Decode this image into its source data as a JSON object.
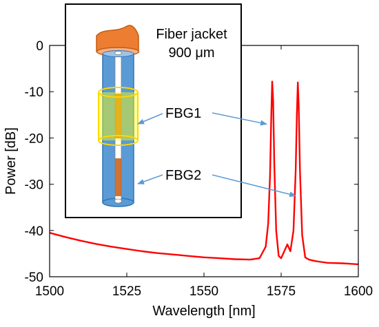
{
  "chart_data": {
    "type": "line",
    "xlabel": "Wavelength [nm]",
    "ylabel": "Power [dB]",
    "xlim": [
      1500,
      1600
    ],
    "ylim": [
      -50,
      0
    ],
    "x_ticks": [
      1500,
      1525,
      1550,
      1575,
      1600
    ],
    "y_ticks": [
      0,
      -10,
      -20,
      -30,
      -40,
      -50
    ],
    "grid": false,
    "series": [
      {
        "color": "#ff0000",
        "x": [
          1500,
          1505,
          1510,
          1515,
          1520,
          1525,
          1530,
          1535,
          1540,
          1545,
          1550,
          1555,
          1560,
          1565,
          1568,
          1570,
          1570.8,
          1571.4,
          1571.8,
          1572.1,
          1572.4,
          1572.8,
          1573.4,
          1574.2,
          1575,
          1576,
          1577,
          1578,
          1579,
          1579.7,
          1580.1,
          1580.4,
          1580.7,
          1581.1,
          1581.8,
          1582.8,
          1584,
          1586,
          1588,
          1590,
          1595,
          1600
        ],
        "y": [
          -40.5,
          -41.4,
          -42.2,
          -42.9,
          -43.5,
          -44.0,
          -44.5,
          -44.9,
          -45.2,
          -45.5,
          -45.8,
          -46.0,
          -46.2,
          -46.3,
          -46.0,
          -43.5,
          -38.5,
          -28.0,
          -15.0,
          -7.8,
          -12.0,
          -26.0,
          -40.0,
          -45.5,
          -46.0,
          -44.5,
          -43.0,
          -44.5,
          -40.0,
          -27.0,
          -15.0,
          -8.0,
          -13.0,
          -27.0,
          -41.0,
          -45.8,
          -46.3,
          -46.6,
          -46.8,
          -47.0,
          -47.1,
          -47.3
        ]
      }
    ],
    "inset": {
      "top_label_line1": "Fiber jacket",
      "top_label_line2": "900 μm",
      "fbg1_label": "FBG1",
      "fbg2_label": "FBG2",
      "fbg1_peak": {
        "x": 1572.1,
        "y": -7.8
      },
      "fbg2_peak": {
        "x": 1580.4,
        "y": -8.0
      },
      "arrow_color": "#5b9bd5",
      "jacket_color": "#ed7d31",
      "fiber_color": "#5b9bd5",
      "ring_color": "#ffff00",
      "grating_color": "#c55a11"
    }
  }
}
